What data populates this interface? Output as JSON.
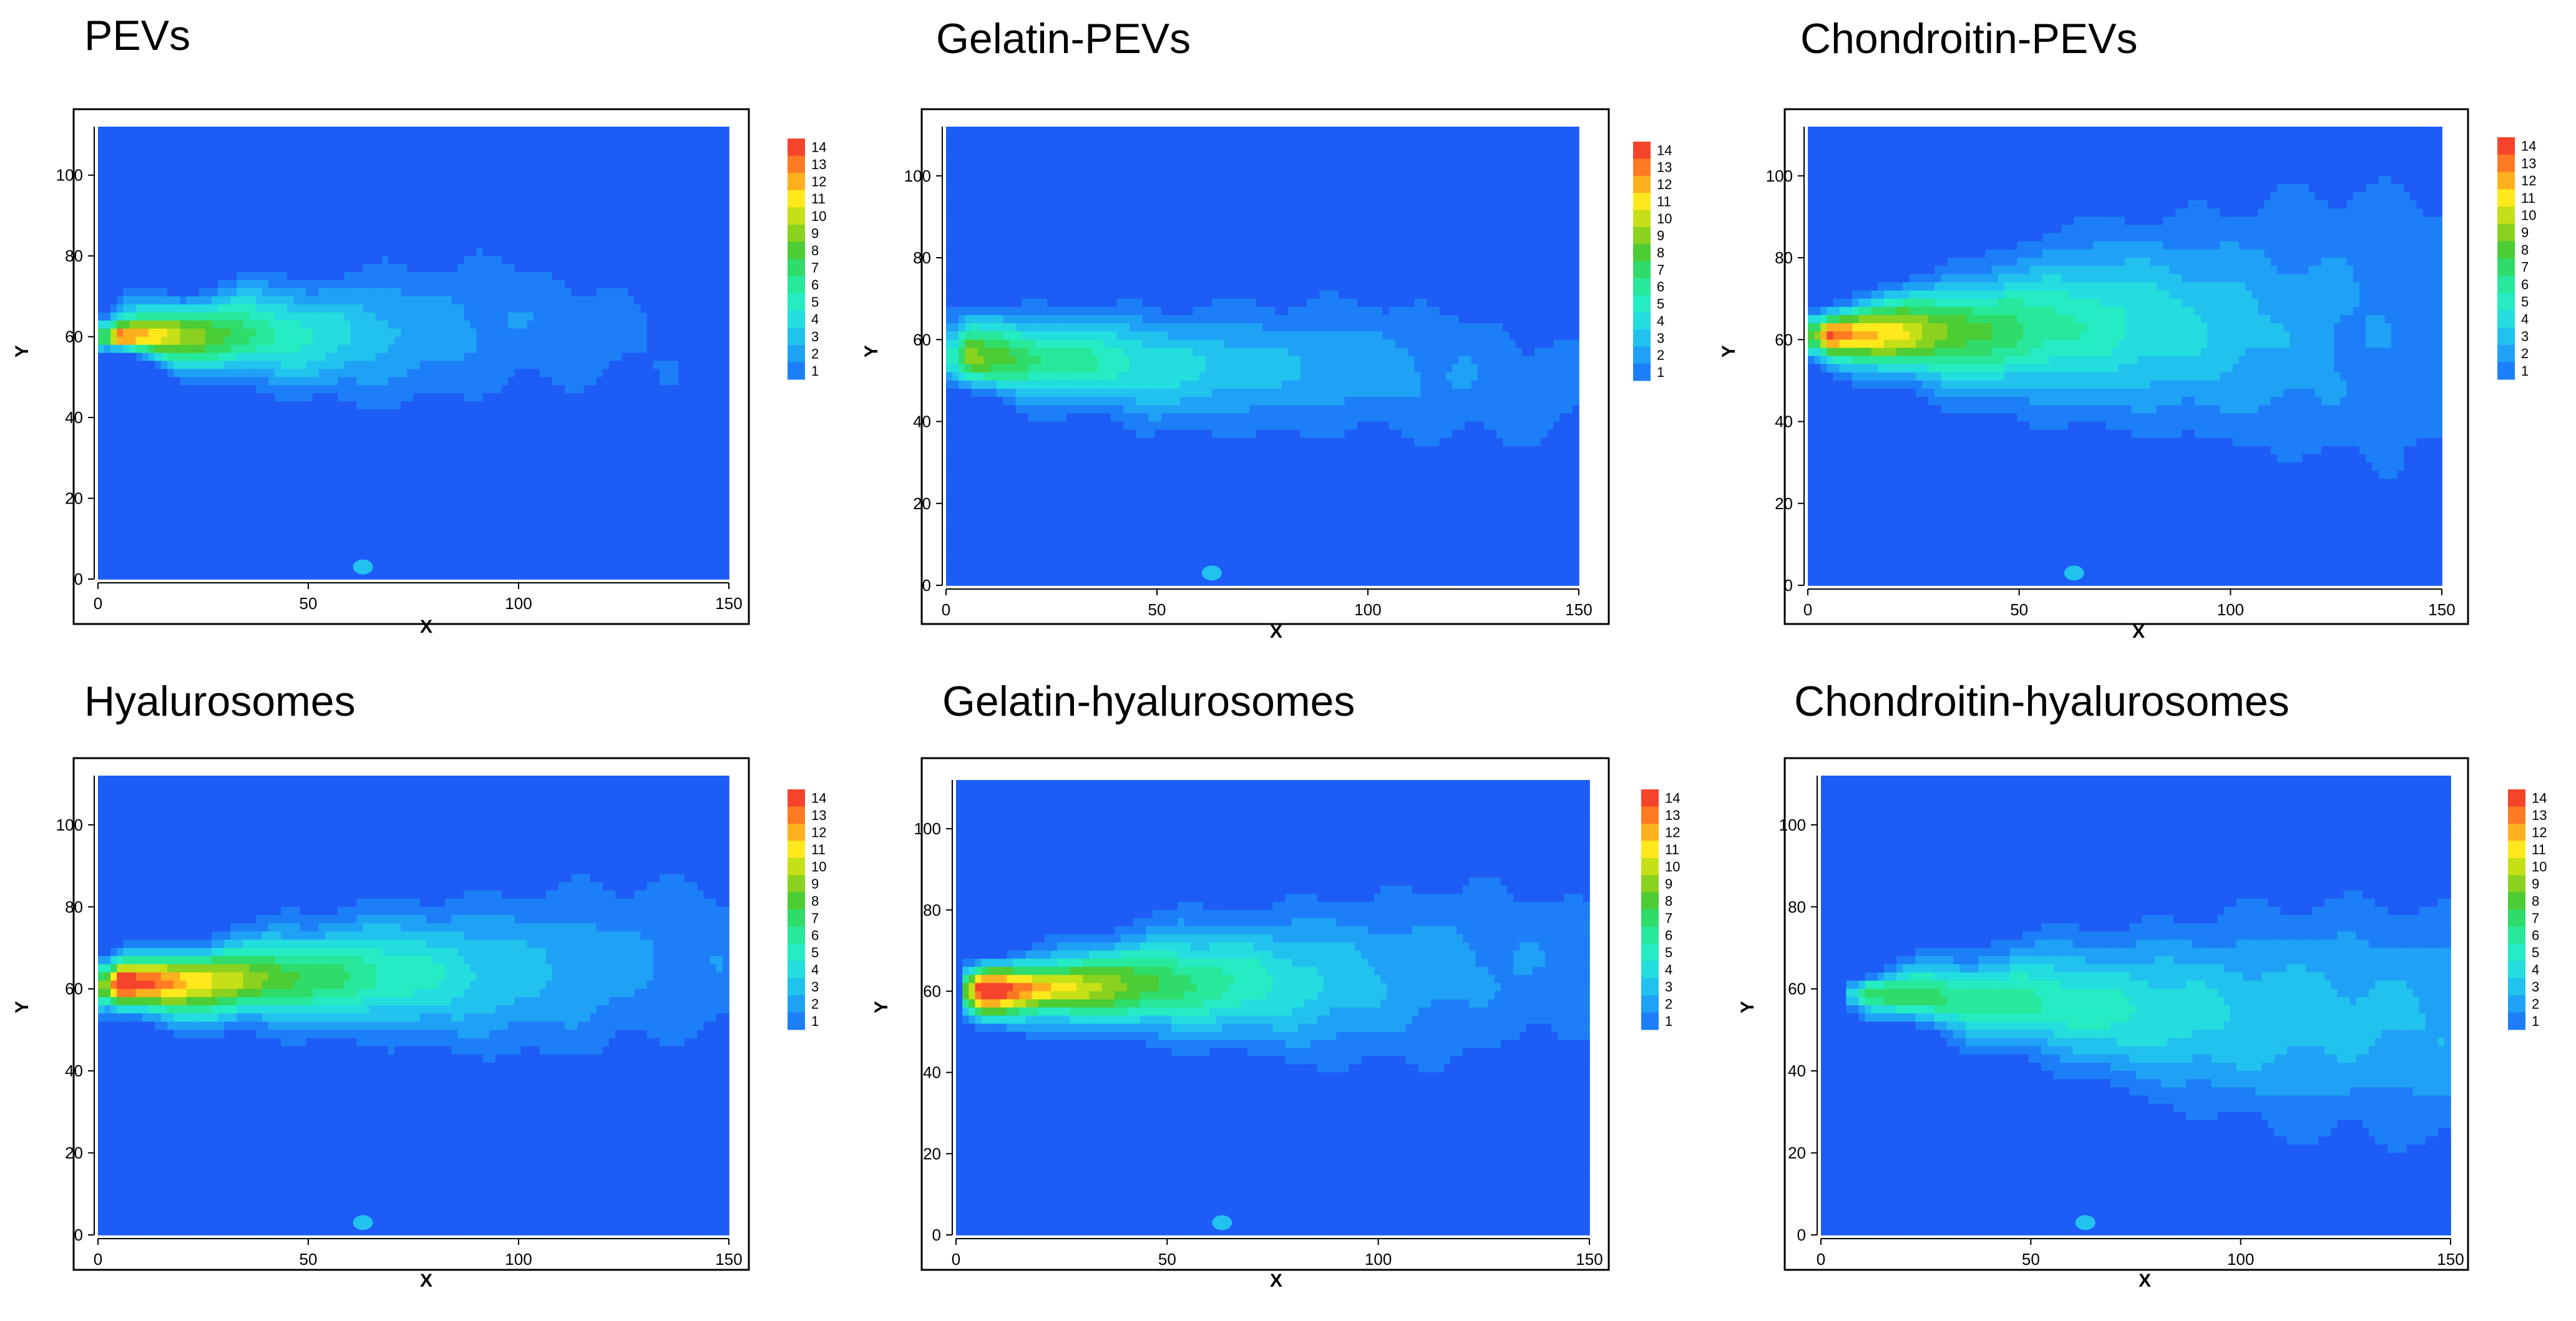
{
  "chart_data": [
    {
      "type": "heatmap",
      "title": "PEVs",
      "xlabel": "X",
      "ylabel": "Y",
      "xlim": [
        0,
        150
      ],
      "ylim": [
        0,
        112
      ],
      "xticks": [
        0,
        50,
        100,
        150
      ],
      "yticks": [
        0,
        20,
        40,
        60,
        80,
        100
      ],
      "legend_levels": [
        14,
        13,
        12,
        11,
        10,
        9,
        8,
        7,
        6,
        5,
        4,
        3,
        2,
        1
      ],
      "plume": {
        "x0": 2,
        "y0": 60,
        "x1": 150,
        "w_base": 3,
        "w_growth": 0.11,
        "drift": 2,
        "peak": 15,
        "decay": 0.022,
        "edge_wobble": 7
      }
    },
    {
      "type": "heatmap",
      "title": "Gelatin-PEVs",
      "xlabel": "X",
      "ylabel": "Y",
      "xlim": [
        0,
        150
      ],
      "ylim": [
        0,
        112
      ],
      "xticks": [
        0,
        50,
        100,
        150
      ],
      "yticks": [
        0,
        20,
        40,
        60,
        80,
        100
      ],
      "legend_levels": [
        14,
        13,
        12,
        11,
        10,
        9,
        8,
        7,
        6,
        5,
        4,
        3,
        2,
        1
      ],
      "plume": {
        "x0": 2,
        "y0": 56,
        "x1": 150,
        "w_base": 5,
        "w_growth": 0.07,
        "drift": -6,
        "peak": 9.5,
        "decay": 0.014,
        "edge_wobble": 6
      }
    },
    {
      "type": "heatmap",
      "title": "Chondroitin-PEVs",
      "xlabel": "X",
      "ylabel": "Y",
      "xlim": [
        0,
        150
      ],
      "ylim": [
        0,
        112
      ],
      "xticks": [
        0,
        50,
        100,
        150
      ],
      "yticks": [
        0,
        20,
        40,
        60,
        80,
        100
      ],
      "legend_levels": [
        14,
        13,
        12,
        11,
        10,
        9,
        8,
        7,
        6,
        5,
        4,
        3,
        2,
        1
      ],
      "plume": {
        "x0": 2,
        "y0": 61,
        "x1": 150,
        "w_base": 3,
        "w_growth": 0.16,
        "drift": 4,
        "peak": 15,
        "decay": 0.015,
        "edge_wobble": 4
      }
    },
    {
      "type": "heatmap",
      "title": "Hyalurosomes",
      "xlabel": "X",
      "ylabel": "Y",
      "xlim": [
        0,
        150
      ],
      "ylim": [
        0,
        112
      ],
      "xticks": [
        0,
        50,
        100,
        150
      ],
      "yticks": [
        0,
        20,
        40,
        60,
        80,
        100
      ],
      "legend_levels": [
        14,
        13,
        12,
        11,
        10,
        9,
        8,
        7,
        6,
        5,
        4,
        3,
        2,
        1
      ],
      "plume": {
        "x0": 2,
        "y0": 61,
        "x1": 150,
        "w_base": 3.5,
        "w_growth": 0.09,
        "drift": 5,
        "peak": 17,
        "decay": 0.016,
        "edge_wobble": 4
      }
    },
    {
      "type": "heatmap",
      "title": "Gelatin-hyalurosomes",
      "xlabel": "X",
      "ylabel": "Y",
      "xlim": [
        0,
        150
      ],
      "ylim": [
        0,
        112
      ],
      "xticks": [
        0,
        50,
        100,
        150
      ],
      "yticks": [
        0,
        20,
        40,
        60,
        80,
        100
      ],
      "legend_levels": [
        14,
        13,
        12,
        11,
        10,
        9,
        8,
        7,
        6,
        5,
        4,
        3,
        2,
        1
      ],
      "plume": {
        "x0": 3,
        "y0": 60,
        "x1": 150,
        "w_base": 3.5,
        "w_growth": 0.1,
        "drift": 5,
        "peak": 17,
        "decay": 0.017,
        "edge_wobble": 5
      }
    },
    {
      "type": "heatmap",
      "title": "Chondroitin-hyalurosomes",
      "xlabel": "X",
      "ylabel": "Y",
      "xlim": [
        0,
        150
      ],
      "ylim": [
        0,
        112
      ],
      "xticks": [
        0,
        50,
        100,
        150
      ],
      "yticks": [
        0,
        20,
        40,
        60,
        80,
        100
      ],
      "legend_levels": [
        14,
        13,
        12,
        11,
        10,
        9,
        8,
        7,
        6,
        5,
        4,
        3,
        2,
        1
      ],
      "plume": {
        "x0": 8,
        "y0": 59,
        "x1": 150,
        "w_base": 3,
        "w_growth": 0.13,
        "drift": -8,
        "peak": 8.5,
        "decay": 0.008,
        "edge_wobble": 6
      }
    }
  ],
  "colormap": [
    "#1d5cf5",
    "#1d7ff7",
    "#1fa2f5",
    "#22c2ef",
    "#23ddde",
    "#25ecc2",
    "#27e89b",
    "#2fdc6a",
    "#4ccc35",
    "#8ad21f",
    "#c5e017",
    "#ffe81c",
    "#ffb01e",
    "#ff7a22",
    "#f5432c"
  ]
}
